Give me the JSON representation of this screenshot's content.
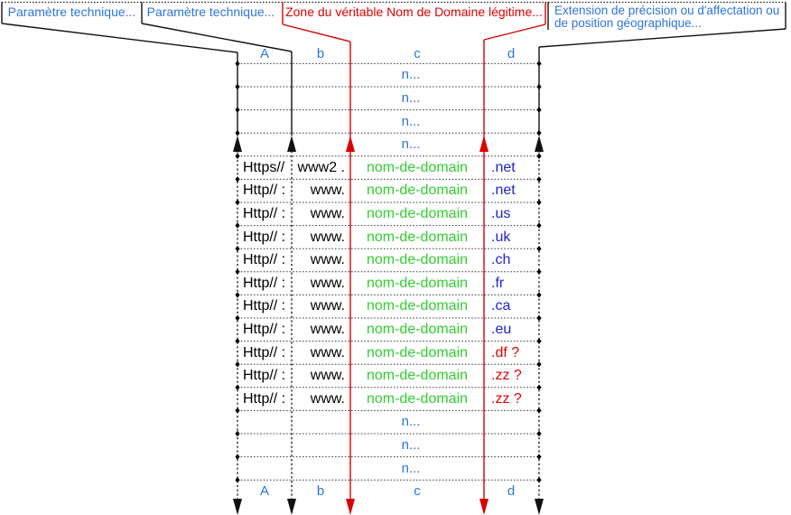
{
  "callouts": {
    "param_technique_1": "Paramètre technique...",
    "param_technique_2": "Paramètre technique...",
    "domain_zone": "Zone du véritable Nom de Domaine légitime...",
    "extension_line1": "Extension de précision ou d'affectation ou",
    "extension_line2": "de position géographique..."
  },
  "table": {
    "column_letters_top": [
      "A",
      "b",
      "c",
      "d"
    ],
    "column_letters_bottom": [
      "A",
      "b",
      "c",
      "d"
    ],
    "placeholder": "n...",
    "rows": [
      {
        "scheme": "Https//",
        "subdomain": "www2 .",
        "domain": "nom-de-domain",
        "tld": ".net",
        "tld_color": "blue"
      },
      {
        "scheme": "Http// :",
        "subdomain": "www.",
        "domain": "nom-de-domain",
        "tld": ".net",
        "tld_color": "blue"
      },
      {
        "scheme": "Http// :",
        "subdomain": "www.",
        "domain": "nom-de-domain",
        "tld": ".us",
        "tld_color": "blue"
      },
      {
        "scheme": "Http// :",
        "subdomain": "www.",
        "domain": "nom-de-domain",
        "tld": ".uk",
        "tld_color": "blue"
      },
      {
        "scheme": "Http// :",
        "subdomain": "www.",
        "domain": "nom-de-domain",
        "tld": ".ch",
        "tld_color": "blue"
      },
      {
        "scheme": "Http// :",
        "subdomain": "www.",
        "domain": "nom-de-domain",
        "tld": ".fr",
        "tld_color": "blue"
      },
      {
        "scheme": "Http// :",
        "subdomain": "www.",
        "domain": "nom-de-domain",
        "tld": ".ca",
        "tld_color": "blue"
      },
      {
        "scheme": "Http// :",
        "subdomain": "www.",
        "domain": "nom-de-domain",
        "tld": ".eu",
        "tld_color": "blue"
      },
      {
        "scheme": "Http// :",
        "subdomain": "www.",
        "domain": "nom-de-domain",
        "tld": ".df ?",
        "tld_color": "red"
      },
      {
        "scheme": "Http// :",
        "subdomain": "www.",
        "domain": "nom-de-domain",
        "tld": ".zz ?",
        "tld_color": "red"
      },
      {
        "scheme": "Http// :",
        "subdomain": "www.",
        "domain": "nom-de-domain",
        "tld": ".zz ?",
        "tld_color": "red"
      }
    ]
  },
  "colors": {
    "callout_blue": "#2E74D9",
    "value_blue": "#2222CC",
    "domain_green": "#33CC33",
    "alert_red": "#DE0000",
    "line_red": "#D90000",
    "line_black": "#111111"
  }
}
